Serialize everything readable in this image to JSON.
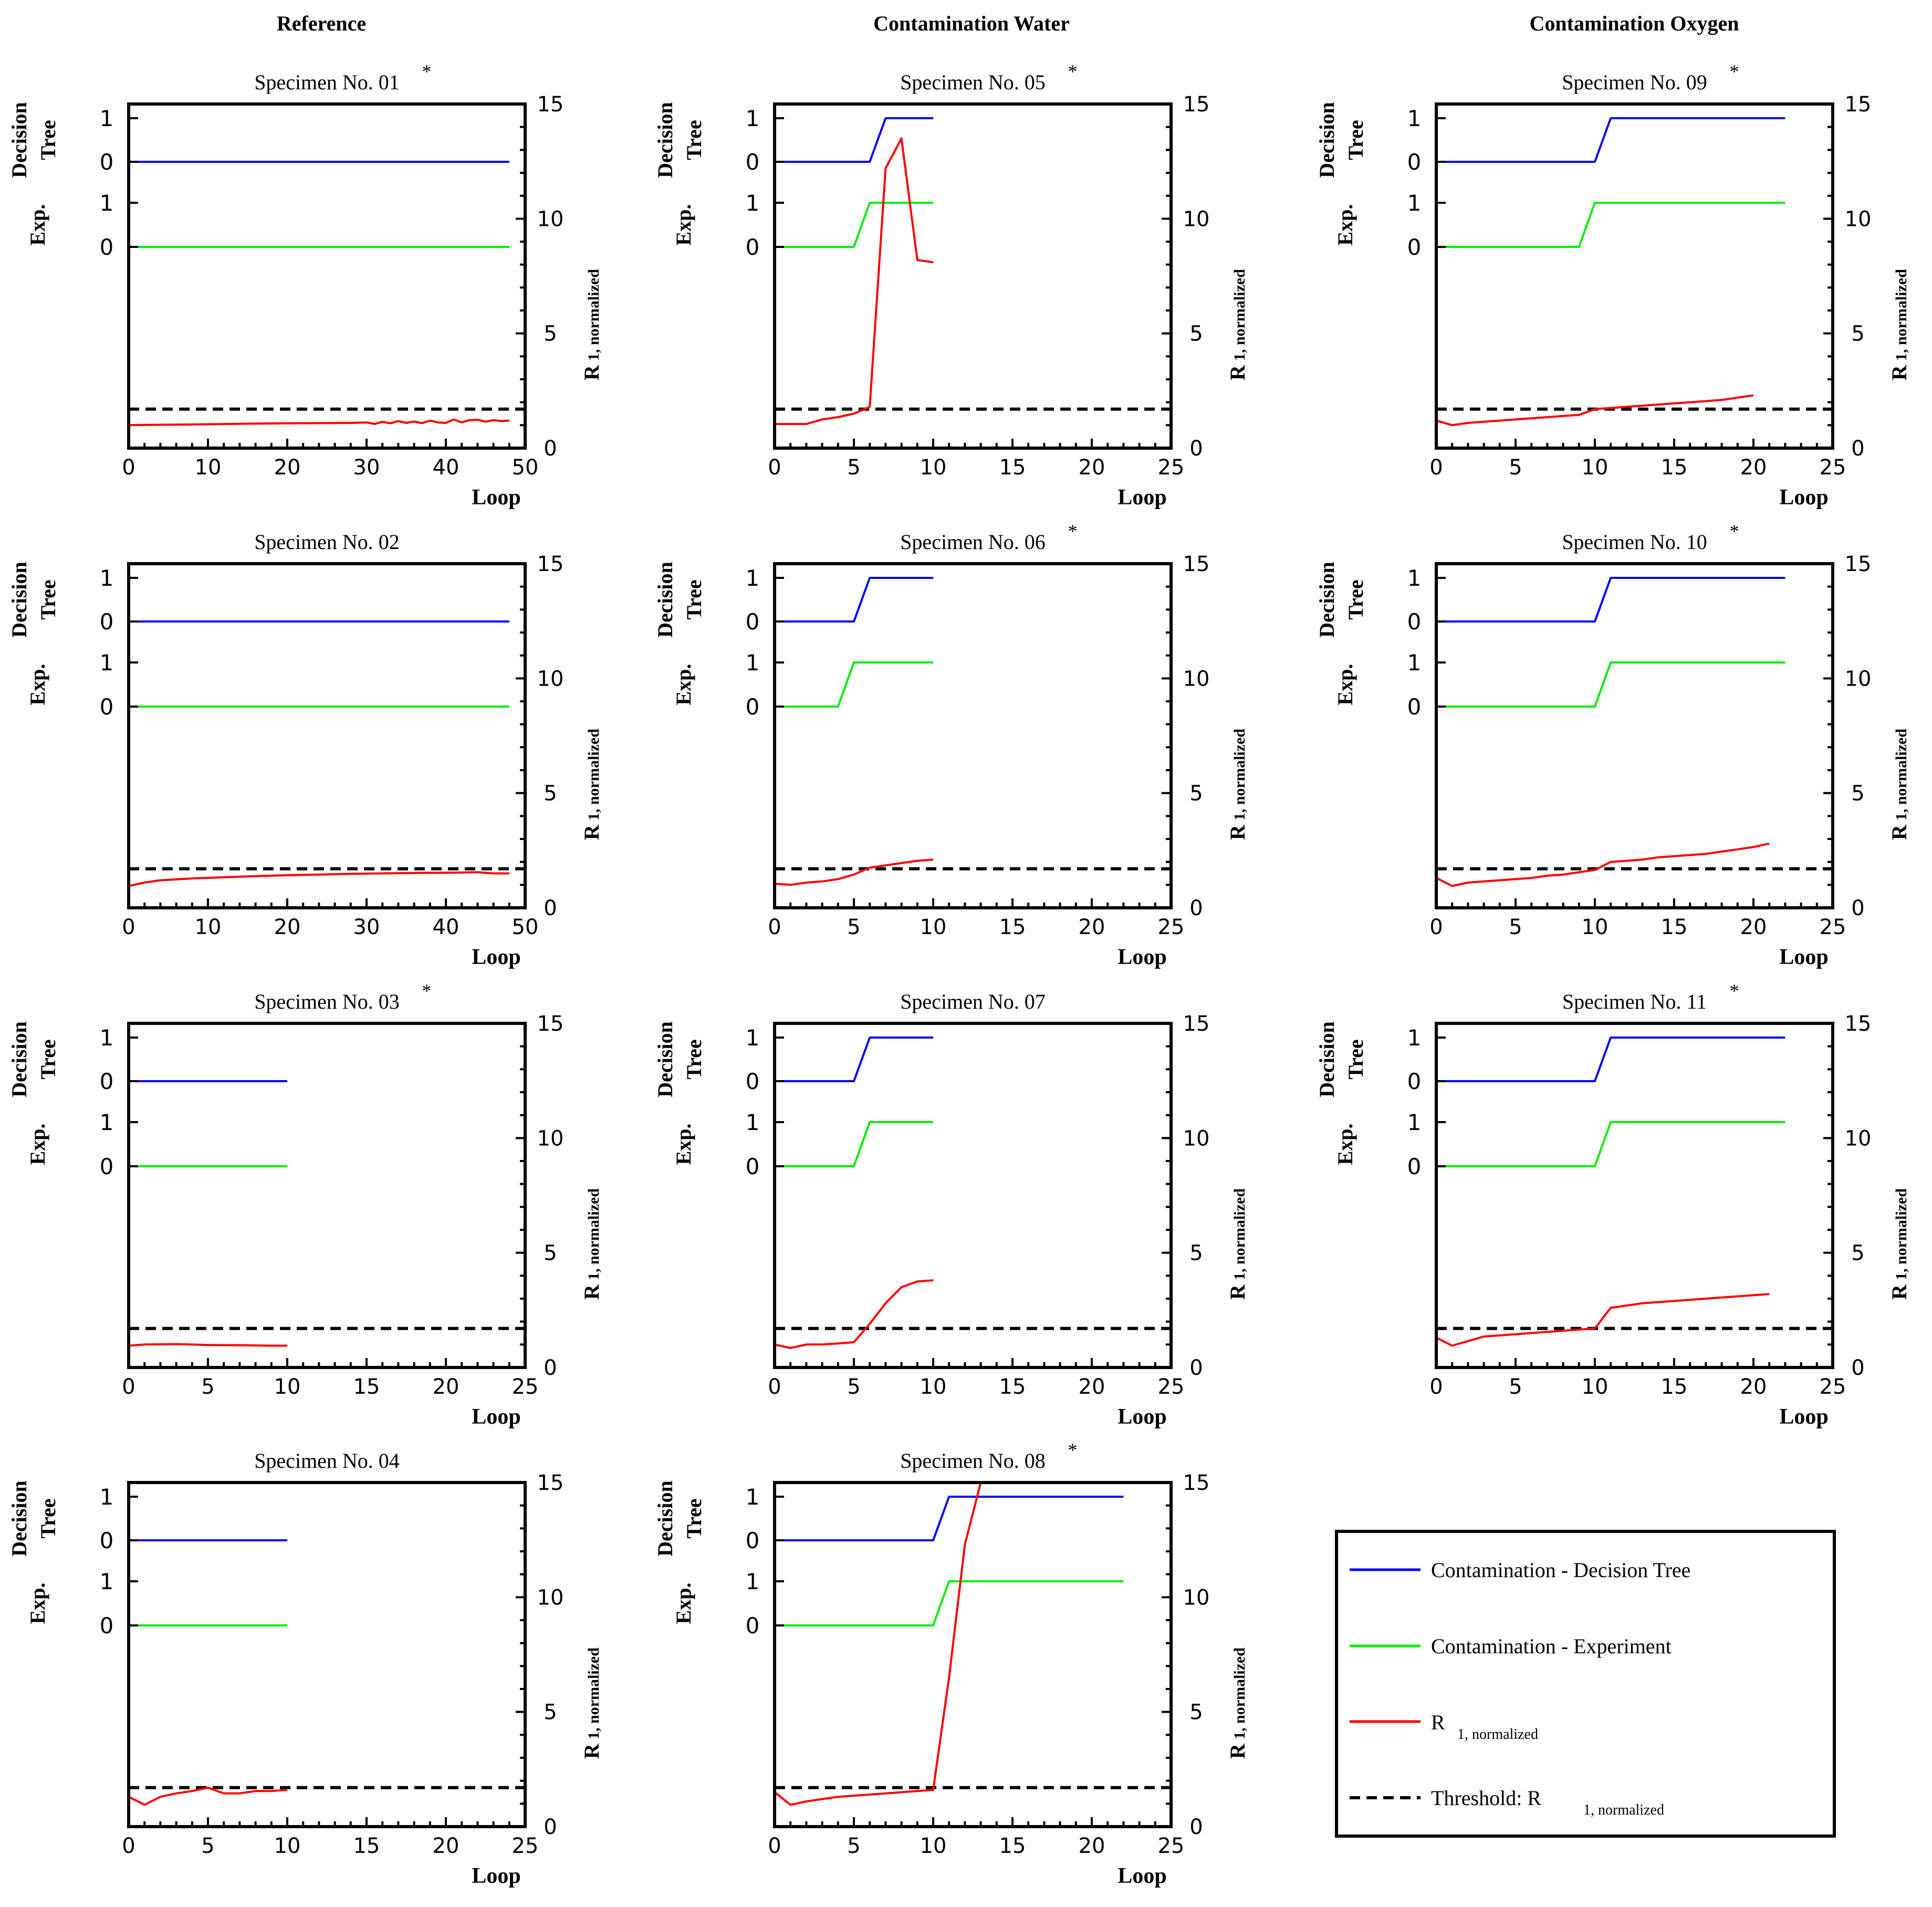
{
  "column_headers": [
    "Reference",
    "Contamination Water",
    "Contamination Oxygen"
  ],
  "colors": {
    "decision_tree": "#0000ff",
    "experiment": "#00ee00",
    "r1": "#ff0000",
    "threshold": "#000000"
  },
  "common": {
    "xlabel": "Loop",
    "left_label_top": [
      "Decision",
      "Tree"
    ],
    "left_label_bottom": "Exp.",
    "right_label_main": "R",
    "right_label_sub": "1, normalized",
    "binary_ticks": [
      "1",
      "0",
      "1",
      "0"
    ],
    "y_right_ticks": [
      "0",
      "5",
      "10",
      "15"
    ],
    "threshold_value": 1.7
  },
  "legend": {
    "decision_tree": "Contamination - Decision Tree",
    "experiment": "Contamination - Experiment",
    "r1_main": "R",
    "r1_sub": "1, normalized",
    "threshold_main": "Threshold: R",
    "threshold_sub": "1, normalized"
  },
  "chart_data": [
    {
      "type": "line",
      "title": "Specimen No. 01",
      "star": "*",
      "col": 0,
      "row": 0,
      "xlim": [
        0,
        50
      ],
      "xticks": [
        "0",
        "10",
        "20",
        "30",
        "40",
        "50"
      ],
      "ylim": [
        0,
        15
      ],
      "dt": {
        "x": [
          0,
          48
        ],
        "y": [
          0,
          0
        ]
      },
      "exp": {
        "x": [
          0,
          48
        ],
        "y": [
          0,
          0
        ]
      },
      "r1": {
        "x": [
          0,
          4,
          8,
          12,
          16,
          20,
          24,
          28,
          30,
          31,
          32,
          33,
          34,
          35,
          36,
          37,
          38,
          39,
          40,
          41,
          42,
          43,
          44,
          45,
          46,
          47,
          48
        ],
        "y": [
          1.0,
          1.02,
          1.03,
          1.05,
          1.07,
          1.08,
          1.09,
          1.1,
          1.12,
          1.05,
          1.15,
          1.08,
          1.18,
          1.1,
          1.16,
          1.09,
          1.2,
          1.12,
          1.1,
          1.25,
          1.12,
          1.22,
          1.24,
          1.15,
          1.22,
          1.18,
          1.2
        ]
      }
    },
    {
      "type": "line",
      "title": "Specimen No. 02",
      "star": "",
      "col": 0,
      "row": 1,
      "xlim": [
        0,
        50
      ],
      "xticks": [
        "0",
        "10",
        "20",
        "30",
        "40",
        "50"
      ],
      "ylim": [
        0,
        15
      ],
      "dt": {
        "x": [
          0,
          48
        ],
        "y": [
          0,
          0
        ]
      },
      "exp": {
        "x": [
          0,
          48
        ],
        "y": [
          0,
          0
        ]
      },
      "r1": {
        "x": [
          0,
          2,
          4,
          8,
          12,
          16,
          20,
          24,
          28,
          32,
          36,
          40,
          44,
          46,
          48
        ],
        "y": [
          0.95,
          1.1,
          1.2,
          1.28,
          1.33,
          1.38,
          1.42,
          1.45,
          1.48,
          1.5,
          1.52,
          1.53,
          1.55,
          1.5,
          1.5
        ]
      }
    },
    {
      "type": "line",
      "title": "Specimen No. 03",
      "star": "*",
      "col": 0,
      "row": 2,
      "xlim": [
        0,
        25
      ],
      "xticks": [
        "0",
        "5",
        "10",
        "15",
        "20",
        "25"
      ],
      "ylim": [
        0,
        15
      ],
      "dt": {
        "x": [
          0,
          10
        ],
        "y": [
          0,
          0
        ]
      },
      "exp": {
        "x": [
          0,
          10
        ],
        "y": [
          0,
          0
        ]
      },
      "r1": {
        "x": [
          0,
          1,
          3,
          5,
          7,
          9,
          10
        ],
        "y": [
          0.95,
          1.0,
          1.02,
          0.98,
          0.97,
          0.95,
          0.95
        ]
      }
    },
    {
      "type": "line",
      "title": "Specimen No. 04",
      "star": "",
      "col": 0,
      "row": 3,
      "xlim": [
        0,
        25
      ],
      "xticks": [
        "0",
        "5",
        "10",
        "15",
        "20",
        "25"
      ],
      "ylim": [
        0,
        15
      ],
      "dt": {
        "x": [
          0,
          10
        ],
        "y": [
          0,
          0
        ]
      },
      "exp": {
        "x": [
          0,
          10
        ],
        "y": [
          0,
          0
        ]
      },
      "r1": {
        "x": [
          0,
          1,
          2,
          3,
          4,
          5,
          6,
          7,
          8,
          9,
          10
        ],
        "y": [
          1.3,
          0.95,
          1.3,
          1.45,
          1.55,
          1.7,
          1.45,
          1.45,
          1.55,
          1.55,
          1.6
        ]
      }
    },
    {
      "type": "line",
      "title": "Specimen No. 05",
      "star": "*",
      "col": 1,
      "row": 0,
      "xlim": [
        0,
        25
      ],
      "xticks": [
        "0",
        "5",
        "10",
        "15",
        "20",
        "25"
      ],
      "ylim": [
        0,
        15
      ],
      "dt": {
        "x": [
          0,
          6,
          7,
          10
        ],
        "y": [
          0,
          0,
          1,
          1
        ]
      },
      "exp": {
        "x": [
          0,
          5,
          6,
          10
        ],
        "y": [
          0,
          0,
          1,
          1
        ]
      },
      "r1": {
        "x": [
          0,
          1,
          2,
          3,
          4,
          5,
          6,
          7,
          8,
          9,
          10
        ],
        "y": [
          1.05,
          1.05,
          1.05,
          1.25,
          1.35,
          1.5,
          1.8,
          12.2,
          13.5,
          8.2,
          8.1
        ]
      }
    },
    {
      "type": "line",
      "title": "Specimen No. 06",
      "star": "*",
      "col": 1,
      "row": 1,
      "xlim": [
        0,
        25
      ],
      "xticks": [
        "0",
        "5",
        "10",
        "15",
        "20",
        "25"
      ],
      "ylim": [
        0,
        15
      ],
      "dt": {
        "x": [
          0,
          5,
          6,
          10
        ],
        "y": [
          0,
          0,
          1,
          1
        ]
      },
      "exp": {
        "x": [
          0,
          4,
          5,
          10
        ],
        "y": [
          0,
          0,
          1,
          1
        ]
      },
      "r1": {
        "x": [
          0,
          1,
          2,
          3,
          4,
          5,
          6,
          7,
          8,
          9,
          10
        ],
        "y": [
          1.05,
          1.0,
          1.1,
          1.15,
          1.25,
          1.45,
          1.75,
          1.85,
          1.95,
          2.05,
          2.1
        ]
      }
    },
    {
      "type": "line",
      "title": "Specimen No. 07",
      "star": "",
      "col": 1,
      "row": 2,
      "xlim": [
        0,
        25
      ],
      "xticks": [
        "0",
        "5",
        "10",
        "15",
        "20",
        "25"
      ],
      "ylim": [
        0,
        15
      ],
      "dt": {
        "x": [
          0,
          5,
          6,
          10
        ],
        "y": [
          0,
          0,
          1,
          1
        ]
      },
      "exp": {
        "x": [
          0,
          5,
          6,
          10
        ],
        "y": [
          0,
          0,
          1,
          1
        ]
      },
      "r1": {
        "x": [
          0,
          1,
          2,
          3,
          4,
          5,
          6,
          7,
          8,
          9,
          10
        ],
        "y": [
          1.0,
          0.85,
          1.0,
          1.0,
          1.05,
          1.1,
          1.9,
          2.8,
          3.5,
          3.75,
          3.8
        ]
      }
    },
    {
      "type": "line",
      "title": "Specimen No. 08",
      "star": "*",
      "col": 1,
      "row": 3,
      "xlim": [
        0,
        25
      ],
      "xticks": [
        "0",
        "5",
        "10",
        "15",
        "20",
        "25"
      ],
      "ylim": [
        0,
        15
      ],
      "dt": {
        "x": [
          0,
          10,
          11,
          22
        ],
        "y": [
          0,
          0,
          1,
          1
        ]
      },
      "exp": {
        "x": [
          0,
          10,
          11,
          22
        ],
        "y": [
          0,
          0,
          1,
          1
        ]
      },
      "r1": {
        "x": [
          0,
          1,
          2,
          3,
          4,
          5,
          6,
          7,
          8,
          9,
          10,
          11,
          12,
          13
        ],
        "y": [
          1.5,
          0.95,
          1.1,
          1.2,
          1.3,
          1.35,
          1.4,
          1.45,
          1.5,
          1.55,
          1.6,
          6.5,
          12.3,
          15.0
        ]
      }
    },
    {
      "type": "line",
      "title": "Specimen No. 09",
      "star": "*",
      "col": 2,
      "row": 0,
      "xlim": [
        0,
        25
      ],
      "xticks": [
        "0",
        "5",
        "10",
        "15",
        "20",
        "25"
      ],
      "ylim": [
        0,
        15
      ],
      "dt": {
        "x": [
          0,
          10,
          11,
          22
        ],
        "y": [
          0,
          0,
          1,
          1
        ]
      },
      "exp": {
        "x": [
          0,
          9,
          10,
          22
        ],
        "y": [
          0,
          0,
          1,
          1
        ]
      },
      "r1": {
        "x": [
          0,
          1,
          2,
          3,
          4,
          5,
          6,
          7,
          8,
          9,
          10,
          11,
          12,
          13,
          14,
          15,
          16,
          17,
          18,
          19,
          20
        ],
        "y": [
          1.2,
          1.0,
          1.1,
          1.15,
          1.2,
          1.25,
          1.3,
          1.35,
          1.4,
          1.45,
          1.7,
          1.75,
          1.8,
          1.85,
          1.9,
          1.95,
          2.0,
          2.05,
          2.1,
          2.2,
          2.3
        ]
      }
    },
    {
      "type": "line",
      "title": "Specimen No. 10",
      "star": "*",
      "col": 2,
      "row": 1,
      "xlim": [
        0,
        25
      ],
      "xticks": [
        "0",
        "5",
        "10",
        "15",
        "20",
        "25"
      ],
      "ylim": [
        0,
        15
      ],
      "dt": {
        "x": [
          0,
          10,
          11,
          22
        ],
        "y": [
          0,
          0,
          1,
          1
        ]
      },
      "exp": {
        "x": [
          0,
          10,
          11,
          22
        ],
        "y": [
          0,
          0,
          1,
          1
        ]
      },
      "r1": {
        "x": [
          0,
          1,
          2,
          3,
          4,
          5,
          6,
          7,
          8,
          9,
          10,
          11,
          12,
          13,
          14,
          15,
          16,
          17,
          18,
          19,
          20,
          21
        ],
        "y": [
          1.3,
          0.95,
          1.1,
          1.15,
          1.2,
          1.25,
          1.3,
          1.4,
          1.45,
          1.55,
          1.65,
          2.0,
          2.05,
          2.1,
          2.2,
          2.25,
          2.3,
          2.35,
          2.45,
          2.55,
          2.65,
          2.8
        ]
      }
    },
    {
      "type": "line",
      "title": "Specimen No. 11",
      "star": "*",
      "col": 2,
      "row": 2,
      "xlim": [
        0,
        25
      ],
      "xticks": [
        "0",
        "5",
        "10",
        "15",
        "20",
        "25"
      ],
      "ylim": [
        0,
        15
      ],
      "dt": {
        "x": [
          0,
          10,
          11,
          22
        ],
        "y": [
          0,
          0,
          1,
          1
        ]
      },
      "exp": {
        "x": [
          0,
          10,
          11,
          22
        ],
        "y": [
          0,
          0,
          1,
          1
        ]
      },
      "r1": {
        "x": [
          0,
          1,
          2,
          3,
          4,
          5,
          6,
          7,
          8,
          9,
          10,
          11,
          12,
          13,
          14,
          15,
          16,
          17,
          18,
          19,
          20,
          21
        ],
        "y": [
          1.3,
          0.95,
          1.15,
          1.35,
          1.4,
          1.45,
          1.5,
          1.55,
          1.6,
          1.65,
          1.7,
          2.6,
          2.7,
          2.8,
          2.85,
          2.9,
          2.95,
          3.0,
          3.05,
          3.1,
          3.15,
          3.2
        ]
      }
    }
  ]
}
